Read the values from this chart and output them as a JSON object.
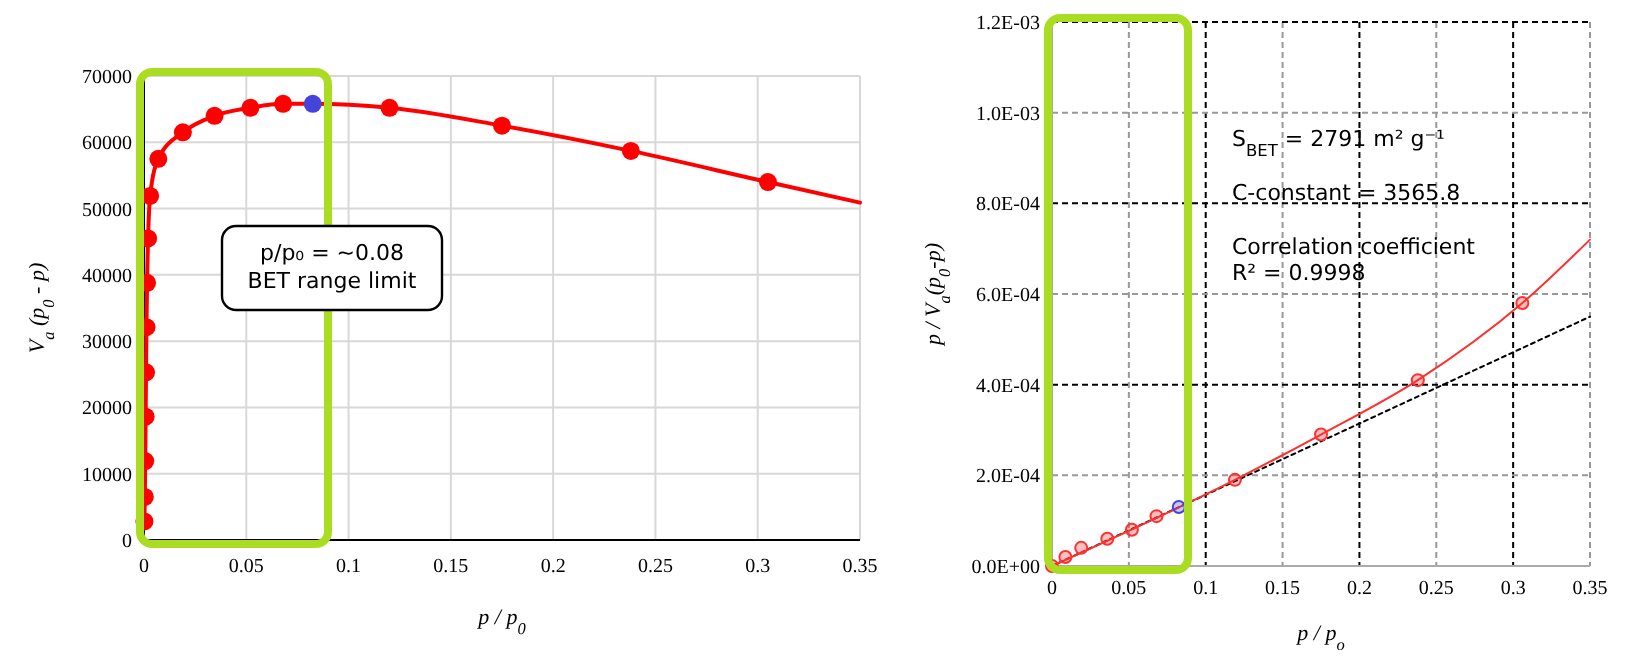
{
  "chart_data": [
    {
      "type": "line",
      "xlabel": "p / p$_{0}$",
      "ylabel": "V$_{a}$ (p$_{0}$ - p)",
      "xlim": [
        0,
        0.35
      ],
      "ylim": [
        0,
        70000
      ],
      "xticks": [
        0,
        0.05,
        0.1,
        0.15,
        0.2,
        0.25,
        0.3,
        0.35
      ],
      "yticks": [
        0,
        10000,
        20000,
        30000,
        40000,
        50000,
        60000,
        70000
      ],
      "grid": true,
      "series": [
        {
          "color": "#ff0000",
          "marker": "none",
          "x": [
            0.0002,
            0.0004,
            0.0006,
            0.0008,
            0.001,
            0.0012,
            0.0015,
            0.002,
            0.003,
            0.007,
            0.019,
            0.0345,
            0.052,
            0.068,
            0.0825,
            0.12,
            0.175,
            0.238,
            0.305,
            0.35
          ],
          "values": [
            2800,
            6500,
            11900,
            18600,
            25300,
            32100,
            38800,
            45500,
            51900,
            57500,
            61500,
            64000,
            65200,
            65800,
            65800,
            65200,
            62500,
            58700,
            54000,
            50900
          ]
        },
        {
          "type": "scatter",
          "color": "#ff0000",
          "marker": "circle",
          "x": [
            0.0002,
            0.0004,
            0.0006,
            0.0008,
            0.001,
            0.0012,
            0.0015,
            0.002,
            0.003,
            0.007,
            0.019,
            0.0345,
            0.052,
            0.068,
            0.12,
            0.175,
            0.238,
            0.305
          ],
          "values": [
            2800,
            6500,
            11900,
            18600,
            25300,
            32100,
            38800,
            45500,
            51900,
            57500,
            61500,
            64000,
            65200,
            65800,
            65200,
            62500,
            58700,
            54000
          ]
        },
        {
          "type": "scatter",
          "color": "#4444dd",
          "marker": "circle",
          "x": [
            0.0825
          ],
          "values": [
            65800
          ]
        }
      ],
      "annotations": [
        "p/p₀ = ~0.08\nBET range limit"
      ]
    },
    {
      "type": "scatter",
      "xlabel": "p / p$_{o}$",
      "ylabel": "p / V$_{a}$(p$_{0}$-p)",
      "xlim": [
        0,
        0.35
      ],
      "ylim": [
        0,
        0.0012
      ],
      "xticks": [
        0,
        0.05,
        0.1,
        0.15,
        0.2,
        0.25,
        0.3,
        0.35
      ],
      "yticks": [
        {
          "value": 0,
          "label": "0.0E+00"
        },
        {
          "value": 0.0002,
          "label": "2.0E-04"
        },
        {
          "value": 0.0004,
          "label": "4.0E-04"
        },
        {
          "value": 0.0006,
          "label": "6.0E-04"
        },
        {
          "value": 0.0008,
          "label": "8.0E-04"
        },
        {
          "value": 0.001,
          "label": "1.0E-03"
        },
        {
          "value": 0.0012,
          "label": "1.2E-03"
        }
      ],
      "grid": true,
      "series": [
        {
          "type": "line",
          "color": "#000000",
          "marker": "none",
          "line_style": "dotted",
          "x": [
            0,
            0.35
          ],
          "values": [
            0,
            0.00055
          ]
        },
        {
          "type": "line",
          "color": "#ff3030",
          "marker": "none",
          "x": [
            0,
            0.119,
            0.175,
            0.238,
            0.306,
            0.35
          ],
          "values": [
            0,
            0.00019,
            0.00029,
            0.00041,
            0.00058,
            0.00072
          ]
        },
        {
          "color": "#ff3030",
          "marker": "circle",
          "x": [
            0,
            0.0087,
            0.019,
            0.036,
            0.052,
            0.068,
            0.119,
            0.175,
            0.238,
            0.306
          ],
          "values": [
            0,
            2e-05,
            4e-05,
            6e-05,
            8e-05,
            0.00011,
            0.00019,
            0.00029,
            0.00041,
            0.00058
          ]
        },
        {
          "color": "#4444dd",
          "marker": "circle",
          "x": [
            0.0825
          ],
          "values": [
            0.00013
          ]
        }
      ],
      "annotations": [
        "S$_{BET}$ = 2791 m² g⁻¹",
        "C-constant = 3565.8",
        "Correlation coefficient\nR² = 0.9998"
      ]
    }
  ]
}
